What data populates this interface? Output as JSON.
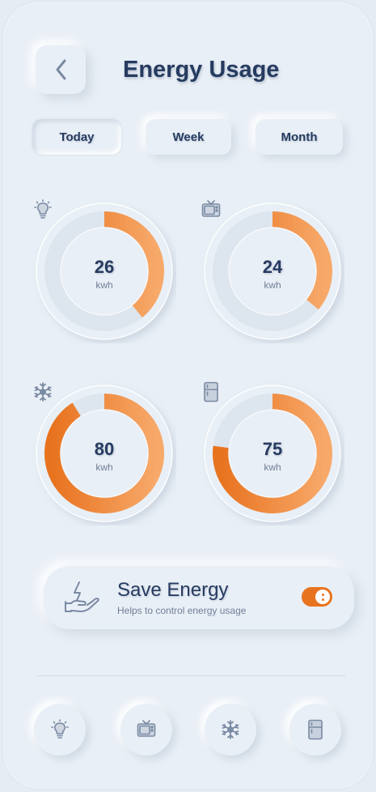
{
  "header": {
    "title": "Energy Usage",
    "back_icon": "chevron-left-icon"
  },
  "tabs": [
    {
      "label": "Today",
      "active": true
    },
    {
      "label": "Week",
      "active": false
    },
    {
      "label": "Month",
      "active": false
    }
  ],
  "devices": [
    {
      "icon": "lightbulb-icon",
      "value": "26",
      "unit": "kwh",
      "fraction": 0.39
    },
    {
      "icon": "tv-icon",
      "value": "24",
      "unit": "kwh",
      "fraction": 0.36
    },
    {
      "icon": "snowflake-icon",
      "value": "80",
      "unit": "kwh",
      "fraction": 0.91
    },
    {
      "icon": "fridge-icon",
      "value": "75",
      "unit": "kwh",
      "fraction": 0.77
    }
  ],
  "save_energy": {
    "title": "Save Energy",
    "subtitle": "Helps to control energy usage",
    "icon": "hand-lightning-icon",
    "enabled": true
  },
  "bottom_nav": [
    {
      "icon": "lightbulb-icon"
    },
    {
      "icon": "tv-icon"
    },
    {
      "icon": "snowflake-icon"
    },
    {
      "icon": "fridge-icon"
    }
  ],
  "colors": {
    "accent": "#e8731f",
    "accent_light": "#f7a96a",
    "text_primary": "#263b60",
    "icon": "#7a8aa3",
    "background": "#e9eff6"
  }
}
